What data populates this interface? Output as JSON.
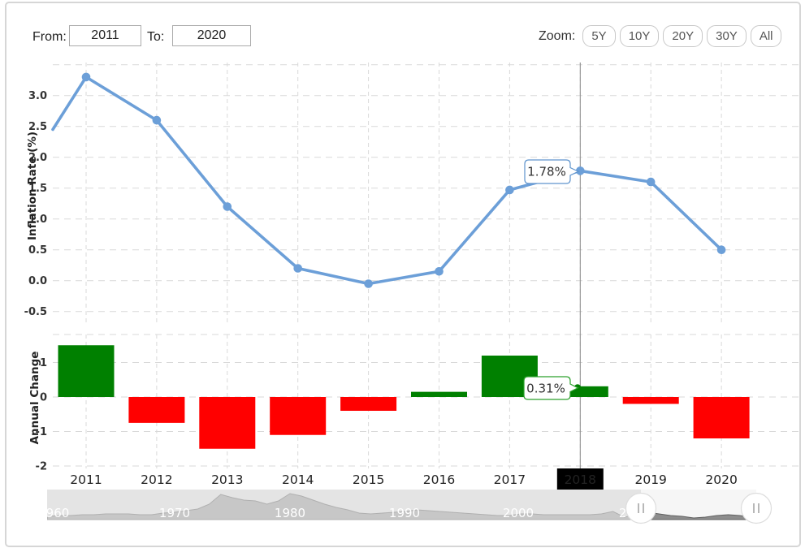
{
  "controls": {
    "from_label": "From:",
    "from_value": "2011",
    "to_label": "To:",
    "to_value": "2020",
    "zoom_label": "Zoom:",
    "zoom_buttons": [
      "5Y",
      "10Y",
      "20Y",
      "30Y",
      "All"
    ]
  },
  "chart_data": {
    "type": "line+bar",
    "categories": [
      "2011",
      "2012",
      "2013",
      "2014",
      "2015",
      "2016",
      "2017",
      "2018",
      "2019",
      "2020"
    ],
    "line": {
      "name": "Inflation Rate",
      "ylabel": "Inflation Rate (%)",
      "values": [
        3.3,
        2.6,
        1.2,
        0.2,
        -0.05,
        0.15,
        1.47,
        1.78,
        1.6,
        0.5
      ],
      "edge_start_value": 2.45,
      "ytick_labels": [
        "3.0",
        "2.5",
        "2.0",
        "1.5",
        "1.0",
        "0.5",
        "0.0",
        "-0.5"
      ],
      "ytick_values": [
        3.0,
        2.5,
        2.0,
        1.5,
        1.0,
        0.5,
        0.0,
        -0.5
      ],
      "ylim": [
        -0.75,
        3.55
      ],
      "color": "#6c9fd8",
      "grid": "dashed"
    },
    "bars": {
      "name": "Annual Change",
      "ylabel": "Annual Change",
      "values": [
        1.5,
        -0.75,
        -1.5,
        -1.1,
        -0.4,
        0.15,
        1.2,
        0.31,
        -0.2,
        -1.2
      ],
      "ytick_labels": [
        "1",
        "0",
        "-1",
        "-2"
      ],
      "ytick_values": [
        1,
        0,
        -1,
        -2
      ],
      "ylim": [
        -2.1,
        1.8
      ],
      "positive_color": "#008000",
      "negative_color": "#ff0000"
    },
    "selected_year": "2018",
    "tooltips": [
      {
        "text": "1.78%",
        "series": "Inflation Rate",
        "year": "2018",
        "border": "#5f94cd"
      },
      {
        "text": "0.31%",
        "series": "Annual Change",
        "year": "2018",
        "border": "#2ca02c"
      }
    ],
    "navigator": {
      "range": [
        "1960",
        "2020"
      ],
      "selected_range": [
        "2011",
        "2020"
      ],
      "decade_labels": [
        "960",
        "1970",
        "1980",
        "1990",
        "2000",
        "2010"
      ],
      "profile": [
        [
          1959,
          4
        ],
        [
          1960,
          5
        ],
        [
          1961,
          5
        ],
        [
          1962,
          6
        ],
        [
          1963,
          6
        ],
        [
          1964,
          7
        ],
        [
          1965,
          7
        ],
        [
          1966,
          7
        ],
        [
          1967,
          6
        ],
        [
          1968,
          6
        ],
        [
          1969,
          8
        ],
        [
          1970,
          9
        ],
        [
          1971,
          11
        ],
        [
          1972,
          13
        ],
        [
          1973,
          19
        ],
        [
          1974,
          31
        ],
        [
          1975,
          27
        ],
        [
          1976,
          24
        ],
        [
          1977,
          23
        ],
        [
          1978,
          19
        ],
        [
          1979,
          23
        ],
        [
          1980,
          32
        ],
        [
          1981,
          29
        ],
        [
          1982,
          24
        ],
        [
          1983,
          19
        ],
        [
          1984,
          15
        ],
        [
          1985,
          12
        ],
        [
          1986,
          8
        ],
        [
          1987,
          7
        ],
        [
          1988,
          8
        ],
        [
          1989,
          9
        ],
        [
          1990,
          10
        ],
        [
          1991,
          12
        ],
        [
          1992,
          11
        ],
        [
          1993,
          10
        ],
        [
          1994,
          9
        ],
        [
          1995,
          8
        ],
        [
          1996,
          7
        ],
        [
          1997,
          6
        ],
        [
          1998,
          5
        ],
        [
          1999,
          5
        ],
        [
          2000,
          7
        ],
        [
          2001,
          7
        ],
        [
          2002,
          6
        ],
        [
          2003,
          6
        ],
        [
          2004,
          6
        ],
        [
          2005,
          6
        ],
        [
          2006,
          6
        ],
        [
          2007,
          7
        ],
        [
          2008,
          10
        ],
        [
          2009,
          3
        ],
        [
          2010,
          6
        ],
        [
          2011,
          9
        ],
        [
          2012,
          7
        ],
        [
          2013,
          5
        ],
        [
          2014,
          4
        ],
        [
          2015,
          2
        ],
        [
          2016,
          3
        ],
        [
          2017,
          5
        ],
        [
          2018,
          6
        ],
        [
          2019,
          5
        ],
        [
          2020,
          3
        ]
      ]
    }
  }
}
